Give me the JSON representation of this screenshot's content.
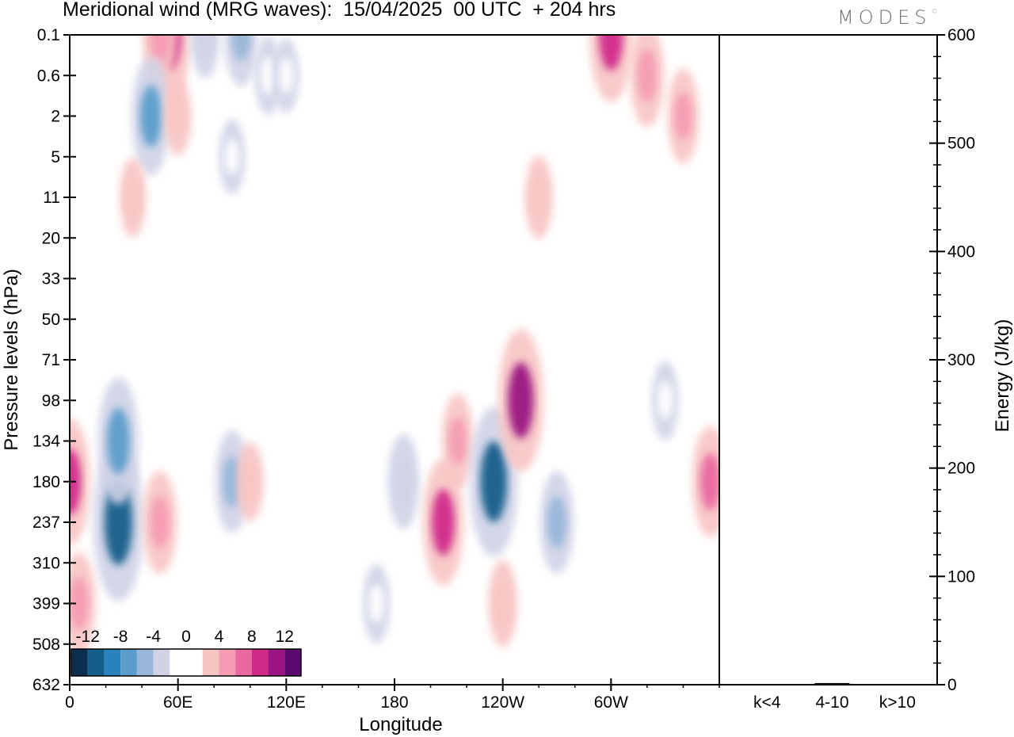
{
  "title": "Meridional wind (MRG waves):  15/04/2025  00 UTC  + 204 hrs",
  "brand": "MODES",
  "brand_mark": "©",
  "chart_data": [
    {
      "type": "heatmap",
      "title": "Meridional wind (MRG waves):  15/04/2025  00 UTC  + 204 hrs",
      "xlabel": "Longitude",
      "ylabel": "Pressure levels (hPa)",
      "x_ticks": [
        "0",
        "60E",
        "120E",
        "180",
        "120W",
        "60W"
      ],
      "x_tick_longitudes": [
        0,
        60,
        120,
        180,
        240,
        300
      ],
      "xlim": [
        0,
        360
      ],
      "y_levels": [
        "0.1",
        "0.6",
        "2",
        "5",
        "11",
        "20",
        "33",
        "50",
        "71",
        "98",
        "134",
        "180",
        "237",
        "310",
        "399",
        "508",
        "632"
      ],
      "colorbar": {
        "labels": [
          "-12",
          "-8",
          "-4",
          "0",
          "4",
          "8",
          "12"
        ],
        "colors": [
          "#0d2f4f",
          "#145e8c",
          "#2a82bd",
          "#5b9dcb",
          "#97b6d9",
          "#d0d3e7",
          "#ffffff",
          "#ffffff",
          "#f8c5c3",
          "#f59bb4",
          "#ea69a0",
          "#d02b8b",
          "#9b1582",
          "#5a0a6e"
        ]
      },
      "cells": [
        {
          "lon": 55,
          "level": "0.1",
          "value": 9
        },
        {
          "lon": 50,
          "level": "0.1",
          "value": 5
        },
        {
          "lon": 75,
          "level": "0.1",
          "value": -3
        },
        {
          "lon": 95,
          "level": "0.1",
          "value": -5
        },
        {
          "lon": 110,
          "level": "0.6",
          "value": -2
        },
        {
          "lon": 120,
          "level": "0.6",
          "value": -1.5
        },
        {
          "lon": 300,
          "level": "0.1",
          "value": 9
        },
        {
          "lon": 320,
          "level": "0.6",
          "value": 5
        },
        {
          "lon": 340,
          "level": "2",
          "value": 4
        },
        {
          "lon": 45,
          "level": "2",
          "value": -7
        },
        {
          "lon": 60,
          "level": "2",
          "value": 2
        },
        {
          "lon": 90,
          "level": "5",
          "value": -1.5
        },
        {
          "lon": 260,
          "level": "11",
          "value": 2.5
        },
        {
          "lon": 35,
          "level": "11",
          "value": 2
        },
        {
          "lon": 0,
          "level": "180",
          "value": 8
        },
        {
          "lon": 27,
          "level": "237",
          "value": -12
        },
        {
          "lon": 27,
          "level": "134",
          "value": -8
        },
        {
          "lon": 50,
          "level": "237",
          "value": 5
        },
        {
          "lon": 90,
          "level": "180",
          "value": -5
        },
        {
          "lon": 100,
          "level": "180",
          "value": 2
        },
        {
          "lon": 185,
          "level": "180",
          "value": -4
        },
        {
          "lon": 207,
          "level": "237",
          "value": 8
        },
        {
          "lon": 215,
          "level": "134",
          "value": 4
        },
        {
          "lon": 235,
          "level": "180",
          "value": -11
        },
        {
          "lon": 250,
          "level": "98",
          "value": 10
        },
        {
          "lon": 270,
          "level": "237",
          "value": -5
        },
        {
          "lon": 240,
          "level": "399",
          "value": 3
        },
        {
          "lon": 355,
          "level": "180",
          "value": 6
        },
        {
          "lon": 5,
          "level": "399",
          "value": 5
        },
        {
          "lon": 170,
          "level": "399",
          "value": -2
        },
        {
          "lon": 330,
          "level": "98",
          "value": -2
        }
      ]
    },
    {
      "type": "bar",
      "ylabel": "Energy (J/kg)",
      "categories": [
        "k<4",
        "4-10",
        "k>10"
      ],
      "values": [
        0.5,
        1.5,
        0.3
      ],
      "ylim": [
        0,
        600
      ],
      "y_ticks": [
        "0",
        "100",
        "200",
        "300",
        "400",
        "500",
        "600"
      ]
    }
  ]
}
